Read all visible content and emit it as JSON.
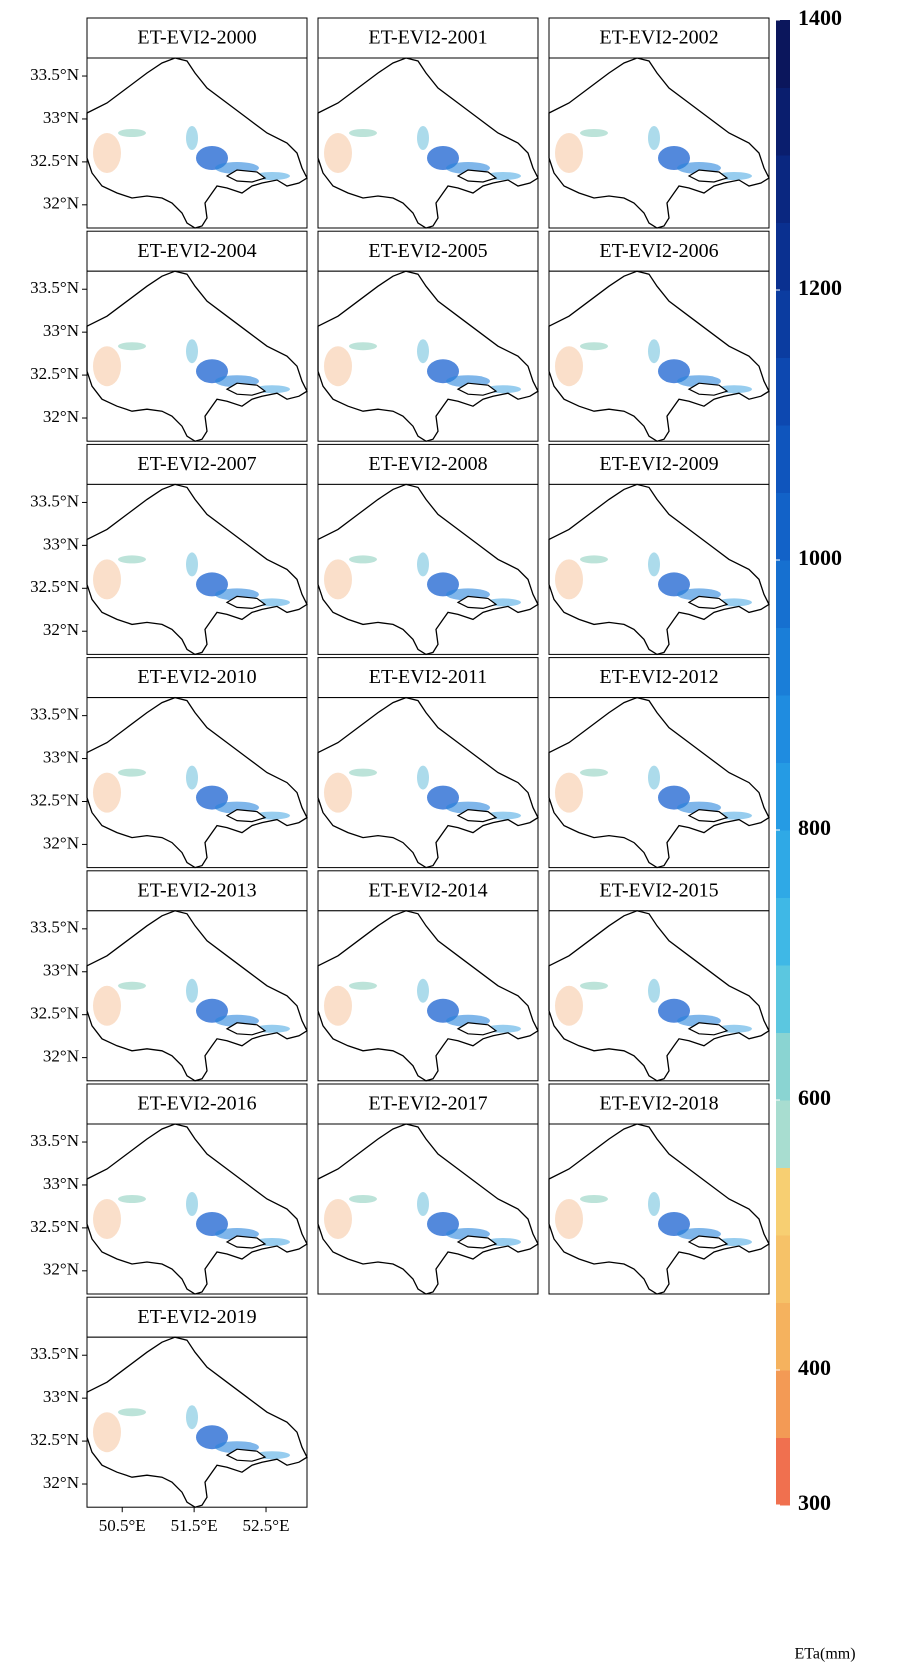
{
  "panels": [
    {
      "title": "ET-EVI2-2000"
    },
    {
      "title": "ET-EVI2-2001"
    },
    {
      "title": "ET-EVI2-2002"
    },
    {
      "title": "ET-EVI2-2004"
    },
    {
      "title": "ET-EVI2-2005"
    },
    {
      "title": "ET-EVI2-2006"
    },
    {
      "title": "ET-EVI2-2007"
    },
    {
      "title": "ET-EVI2-2008"
    },
    {
      "title": "ET-EVI2-2009"
    },
    {
      "title": "ET-EVI2-2010"
    },
    {
      "title": "ET-EVI2-2011"
    },
    {
      "title": "ET-EVI2-2012"
    },
    {
      "title": "ET-EVI2-2013"
    },
    {
      "title": "ET-EVI2-2014"
    },
    {
      "title": "ET-EVI2-2015"
    },
    {
      "title": "ET-EVI2-2016"
    },
    {
      "title": "ET-EVI2-2017"
    },
    {
      "title": "ET-EVI2-2018"
    },
    {
      "title": "ET-EVI2-2019"
    }
  ],
  "map": {
    "lat_lim": [
      31.73,
      33.71
    ],
    "lon_lim": [
      50.01,
      53.07
    ],
    "lat_ticks": [
      {
        "value": 33.5,
        "label": "33.5°N"
      },
      {
        "value": 33,
        "label": "33°N"
      },
      {
        "value": 32.5,
        "label": "32.5°N"
      },
      {
        "value": 32,
        "label": "32°N"
      }
    ],
    "lon_ticks": [
      {
        "value": 50.5,
        "label": "50.5°E"
      },
      {
        "value": 51.5,
        "label": "51.5°E"
      },
      {
        "value": 52.5,
        "label": "52.5°E"
      }
    ]
  },
  "colorbar": {
    "label": "ETa(mm)",
    "lim": [
      300,
      1400
    ],
    "ticks": [
      300,
      400,
      600,
      800,
      1000,
      1200,
      1400
    ],
    "colors": [
      "#f0704f",
      "#f39a55",
      "#f5b25e",
      "#f6c268",
      "#f7cf72",
      "#a8ddd0",
      "#8ad4d2",
      "#5bc7e0",
      "#3fb8e6",
      "#2fa9e6",
      "#259be4",
      "#1f8ce0",
      "#1a7ed8",
      "#1670d0",
      "#1262c8",
      "#0f55bd",
      "#0d48b0",
      "#0b3ca0",
      "#0a3090",
      "#0a2780",
      "#0a1e6e",
      "#0b165c"
    ]
  }
}
